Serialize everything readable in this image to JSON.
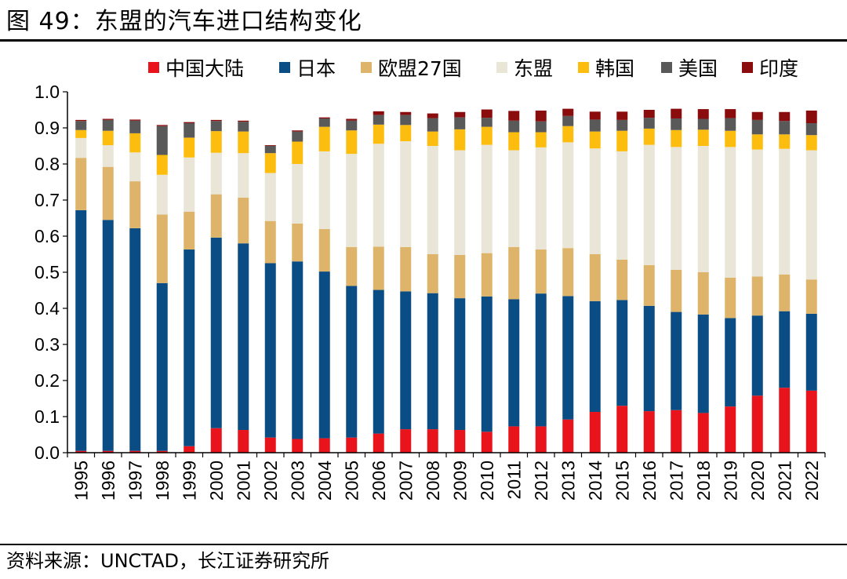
{
  "figure": {
    "title": "图 49：东盟的汽车进口结构变化",
    "source": "资料来源：UNCTAD，长江证券研究所"
  },
  "chart_data": {
    "type": "bar",
    "stacked": true,
    "categories": [
      "1995",
      "1996",
      "1997",
      "1998",
      "1999",
      "2000",
      "2001",
      "2002",
      "2003",
      "2004",
      "2005",
      "2006",
      "2007",
      "2008",
      "2009",
      "2010",
      "2011",
      "2012",
      "2013",
      "2014",
      "2015",
      "2016",
      "2017",
      "2018",
      "2019",
      "2020",
      "2021",
      "2022"
    ],
    "ylim": [
      0,
      1.0
    ],
    "yticks": [
      "0.0",
      "0.1",
      "0.2",
      "0.3",
      "0.4",
      "0.5",
      "0.6",
      "0.7",
      "0.8",
      "0.9",
      "1.0"
    ],
    "legend_position": "top",
    "grid": false,
    "series": [
      {
        "name": "中国大陆",
        "color": "#e8131b",
        "values": [
          0.005,
          0.005,
          0.005,
          0.005,
          0.018,
          0.068,
          0.063,
          0.042,
          0.038,
          0.04,
          0.042,
          0.053,
          0.065,
          0.065,
          0.063,
          0.058,
          0.073,
          0.073,
          0.092,
          0.113,
          0.13,
          0.115,
          0.118,
          0.11,
          0.128,
          0.158,
          0.18,
          0.172
        ]
      },
      {
        "name": "日本",
        "color": "#0a4d84",
        "values": [
          0.667,
          0.64,
          0.617,
          0.465,
          0.545,
          0.528,
          0.517,
          0.483,
          0.492,
          0.462,
          0.42,
          0.398,
          0.382,
          0.377,
          0.365,
          0.375,
          0.352,
          0.368,
          0.342,
          0.307,
          0.293,
          0.292,
          0.272,
          0.273,
          0.245,
          0.222,
          0.212,
          0.213
        ]
      },
      {
        "name": "欧盟27国",
        "color": "#deb46a",
        "values": [
          0.145,
          0.147,
          0.13,
          0.19,
          0.105,
          0.12,
          0.127,
          0.117,
          0.105,
          0.118,
          0.108,
          0.12,
          0.123,
          0.108,
          0.12,
          0.12,
          0.145,
          0.122,
          0.133,
          0.13,
          0.112,
          0.113,
          0.117,
          0.117,
          0.112,
          0.108,
          0.102,
          0.095
        ]
      },
      {
        "name": "东盟",
        "color": "#e9e6d8",
        "values": [
          0.055,
          0.06,
          0.08,
          0.11,
          0.15,
          0.115,
          0.123,
          0.133,
          0.165,
          0.215,
          0.258,
          0.285,
          0.293,
          0.3,
          0.29,
          0.3,
          0.268,
          0.283,
          0.293,
          0.293,
          0.3,
          0.333,
          0.34,
          0.35,
          0.362,
          0.352,
          0.348,
          0.358
        ]
      },
      {
        "name": "韩国",
        "color": "#fdbd0f",
        "values": [
          0.022,
          0.04,
          0.053,
          0.055,
          0.055,
          0.06,
          0.06,
          0.055,
          0.062,
          0.068,
          0.065,
          0.053,
          0.045,
          0.04,
          0.058,
          0.05,
          0.05,
          0.042,
          0.045,
          0.047,
          0.057,
          0.045,
          0.047,
          0.045,
          0.045,
          0.042,
          0.04,
          0.042
        ]
      },
      {
        "name": "美国",
        "color": "#595959",
        "values": [
          0.025,
          0.03,
          0.035,
          0.08,
          0.04,
          0.028,
          0.027,
          0.02,
          0.028,
          0.023,
          0.027,
          0.027,
          0.028,
          0.037,
          0.033,
          0.025,
          0.032,
          0.03,
          0.028,
          0.033,
          0.03,
          0.03,
          0.032,
          0.03,
          0.035,
          0.04,
          0.037,
          0.033
        ]
      },
      {
        "name": "印度",
        "color": "#8b0c0c",
        "values": [
          0.003,
          0.003,
          0.003,
          0.003,
          0.003,
          0.003,
          0.003,
          0.002,
          0.003,
          0.003,
          0.005,
          0.01,
          0.008,
          0.013,
          0.015,
          0.023,
          0.027,
          0.03,
          0.02,
          0.022,
          0.023,
          0.022,
          0.027,
          0.027,
          0.025,
          0.022,
          0.025,
          0.035
        ]
      }
    ]
  }
}
